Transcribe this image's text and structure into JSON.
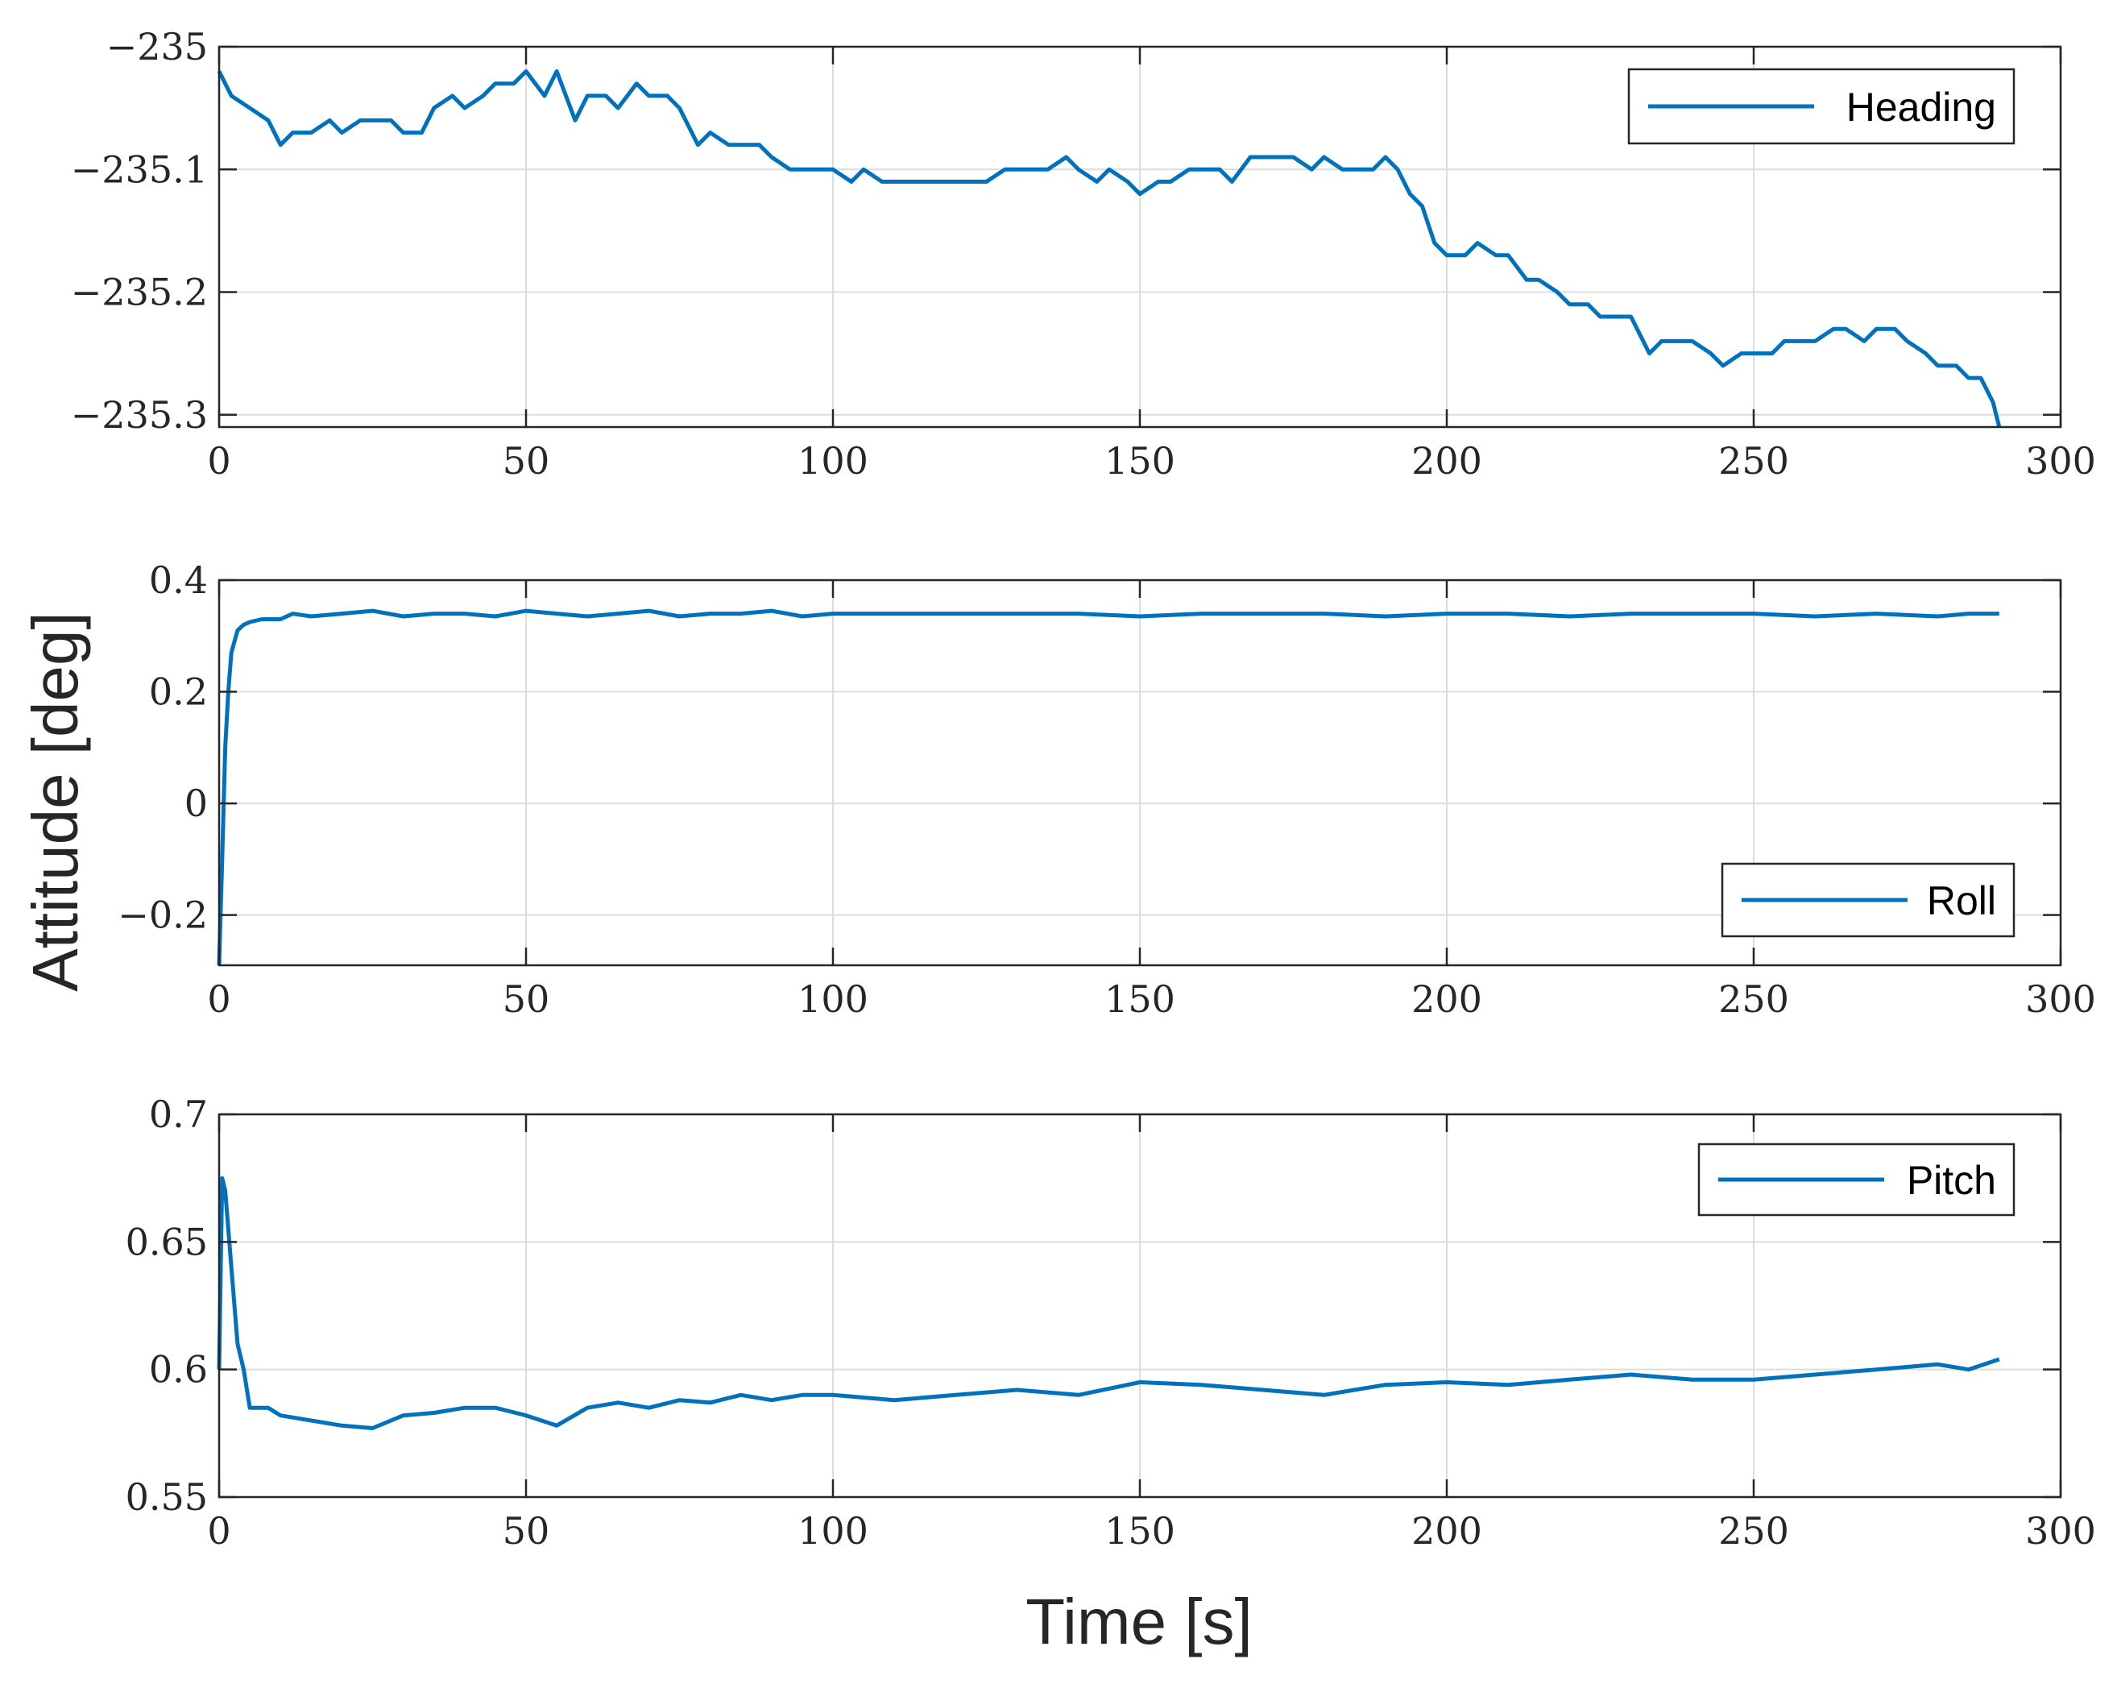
{
  "figure": {
    "ylabel": "Attitude [deg]",
    "xlabel": "Time [s]",
    "line_color": "#0072BD",
    "grid_color": "#dcdcdc",
    "axis_color": "#262626"
  },
  "chart_data": [
    {
      "type": "line",
      "title": "",
      "xlabel": "",
      "ylabel": "",
      "xlim": [
        0,
        300
      ],
      "ylim": [
        -235.31,
        -235.0
      ],
      "xticks": [
        0,
        50,
        100,
        150,
        200,
        250,
        300
      ],
      "xtick_labels": [
        "0",
        "50",
        "100",
        "150",
        "200",
        "250",
        "300"
      ],
      "yticks": [
        -235.3,
        -235.2,
        -235.1,
        -235.0
      ],
      "ytick_labels": [
        "−235.3",
        "−235.2",
        "−235.1",
        "−235"
      ],
      "grid": true,
      "legend_position": "top-right",
      "series": [
        {
          "name": "Heading",
          "x": [
            0,
            2,
            5,
            8,
            10,
            12,
            15,
            18,
            20,
            23,
            25,
            28,
            30,
            33,
            35,
            38,
            40,
            43,
            45,
            48,
            50,
            53,
            55,
            58,
            60,
            63,
            65,
            68,
            70,
            73,
            75,
            78,
            80,
            83,
            85,
            88,
            90,
            93,
            95,
            98,
            100,
            103,
            105,
            108,
            110,
            113,
            115,
            118,
            120,
            123,
            125,
            128,
            130,
            133,
            135,
            138,
            140,
            143,
            145,
            148,
            150,
            153,
            155,
            158,
            160,
            163,
            165,
            168,
            170,
            173,
            175,
            178,
            180,
            183,
            185,
            188,
            190,
            192,
            194,
            196,
            198,
            200,
            203,
            205,
            208,
            210,
            213,
            215,
            218,
            220,
            223,
            225,
            228,
            230,
            233,
            235,
            238,
            240,
            243,
            245,
            248,
            250,
            253,
            255,
            258,
            260,
            263,
            265,
            268,
            270,
            273,
            275,
            278,
            280,
            283,
            285,
            287,
            289,
            290
          ],
          "values": [
            -235.02,
            -235.04,
            -235.05,
            -235.06,
            -235.08,
            -235.07,
            -235.07,
            -235.06,
            -235.07,
            -235.06,
            -235.06,
            -235.06,
            -235.07,
            -235.07,
            -235.05,
            -235.04,
            -235.05,
            -235.04,
            -235.03,
            -235.03,
            -235.02,
            -235.04,
            -235.02,
            -235.06,
            -235.04,
            -235.04,
            -235.05,
            -235.03,
            -235.04,
            -235.04,
            -235.05,
            -235.08,
            -235.07,
            -235.08,
            -235.08,
            -235.08,
            -235.09,
            -235.1,
            -235.1,
            -235.1,
            -235.1,
            -235.11,
            -235.1,
            -235.11,
            -235.11,
            -235.11,
            -235.11,
            -235.11,
            -235.11,
            -235.11,
            -235.11,
            -235.1,
            -235.1,
            -235.1,
            -235.1,
            -235.09,
            -235.1,
            -235.11,
            -235.1,
            -235.11,
            -235.12,
            -235.11,
            -235.11,
            -235.1,
            -235.1,
            -235.1,
            -235.11,
            -235.09,
            -235.09,
            -235.09,
            -235.09,
            -235.1,
            -235.09,
            -235.1,
            -235.1,
            -235.1,
            -235.09,
            -235.1,
            -235.12,
            -235.13,
            -235.16,
            -235.17,
            -235.17,
            -235.16,
            -235.17,
            -235.17,
            -235.19,
            -235.19,
            -235.2,
            -235.21,
            -235.21,
            -235.22,
            -235.22,
            -235.22,
            -235.25,
            -235.24,
            -235.24,
            -235.24,
            -235.25,
            -235.26,
            -235.25,
            -235.25,
            -235.25,
            -235.24,
            -235.24,
            -235.24,
            -235.23,
            -235.23,
            -235.24,
            -235.23,
            -235.23,
            -235.24,
            -235.25,
            -235.26,
            -235.26,
            -235.27,
            -235.27,
            -235.29,
            -235.31
          ]
        }
      ]
    },
    {
      "type": "line",
      "title": "",
      "xlabel": "",
      "ylabel": "",
      "xlim": [
        0,
        300
      ],
      "ylim": [
        -0.29,
        0.4
      ],
      "xticks": [
        0,
        50,
        100,
        150,
        200,
        250,
        300
      ],
      "xtick_labels": [
        "0",
        "50",
        "100",
        "150",
        "200",
        "250",
        "300"
      ],
      "yticks": [
        -0.2,
        0,
        0.2,
        0.4
      ],
      "ytick_labels": [
        "−0.2",
        "0",
        "0.2",
        "0.4"
      ],
      "grid": true,
      "legend_position": "bottom-right",
      "series": [
        {
          "name": "Roll",
          "x": [
            0,
            0.5,
            1,
            1.5,
            2,
            3,
            4,
            5,
            7,
            10,
            12,
            15,
            20,
            25,
            30,
            35,
            40,
            45,
            50,
            55,
            60,
            65,
            70,
            75,
            80,
            85,
            90,
            95,
            100,
            110,
            120,
            130,
            140,
            150,
            160,
            170,
            180,
            190,
            200,
            210,
            220,
            230,
            240,
            250,
            260,
            270,
            280,
            285,
            290
          ],
          "values": [
            -0.29,
            -0.1,
            0.1,
            0.2,
            0.27,
            0.31,
            0.32,
            0.325,
            0.33,
            0.33,
            0.34,
            0.335,
            0.34,
            0.345,
            0.335,
            0.34,
            0.34,
            0.335,
            0.345,
            0.34,
            0.335,
            0.34,
            0.345,
            0.335,
            0.34,
            0.34,
            0.345,
            0.335,
            0.34,
            0.34,
            0.34,
            0.34,
            0.34,
            0.335,
            0.34,
            0.34,
            0.34,
            0.335,
            0.34,
            0.34,
            0.335,
            0.34,
            0.34,
            0.34,
            0.335,
            0.34,
            0.335,
            0.34,
            0.34
          ]
        }
      ]
    },
    {
      "type": "line",
      "title": "",
      "xlabel": "",
      "ylabel": "",
      "xlim": [
        0,
        300
      ],
      "ylim": [
        0.55,
        0.7
      ],
      "xticks": [
        0,
        50,
        100,
        150,
        200,
        250,
        300
      ],
      "xtick_labels": [
        "0",
        "50",
        "100",
        "150",
        "200",
        "250",
        "300"
      ],
      "yticks": [
        0.55,
        0.6,
        0.65,
        0.7
      ],
      "ytick_labels": [
        "0.55",
        "0.6",
        "0.65",
        "0.7"
      ],
      "grid": true,
      "legend_position": "top-right",
      "series": [
        {
          "name": "Pitch",
          "x": [
            0,
            0.5,
            1,
            2,
            3,
            4,
            5,
            8,
            10,
            15,
            20,
            25,
            30,
            35,
            40,
            45,
            50,
            55,
            60,
            65,
            70,
            75,
            80,
            85,
            90,
            95,
            100,
            110,
            120,
            130,
            140,
            150,
            160,
            170,
            180,
            190,
            200,
            210,
            220,
            230,
            240,
            250,
            260,
            270,
            280,
            285,
            290
          ],
          "values": [
            0.6,
            0.675,
            0.67,
            0.64,
            0.61,
            0.6,
            0.585,
            0.585,
            0.582,
            0.58,
            0.578,
            0.577,
            0.582,
            0.583,
            0.585,
            0.585,
            0.582,
            0.578,
            0.585,
            0.587,
            0.585,
            0.588,
            0.587,
            0.59,
            0.588,
            0.59,
            0.59,
            0.588,
            0.59,
            0.592,
            0.59,
            0.595,
            0.594,
            0.592,
            0.59,
            0.594,
            0.595,
            0.594,
            0.596,
            0.598,
            0.596,
            0.596,
            0.598,
            0.6,
            0.602,
            0.6,
            0.604
          ]
        }
      ]
    }
  ]
}
